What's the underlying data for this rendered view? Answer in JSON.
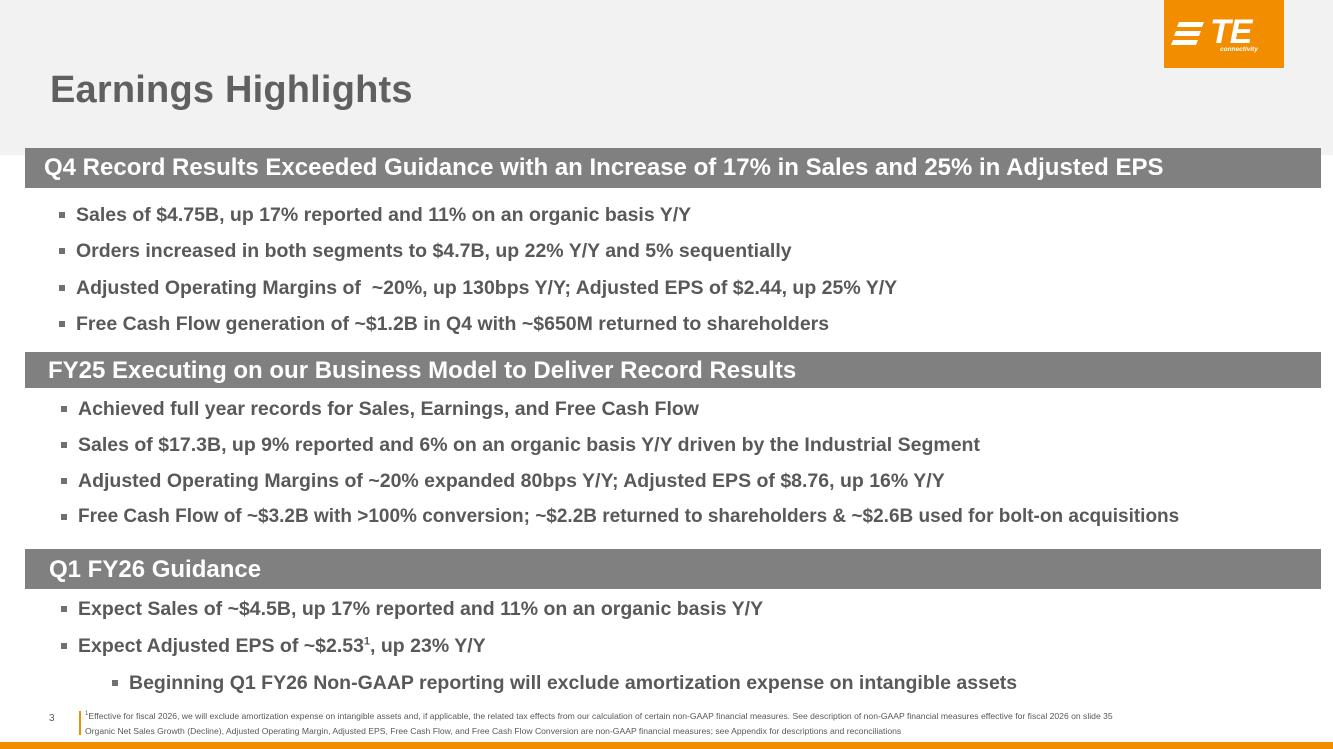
{
  "title": "Earnings Highlights",
  "logo": {
    "brand": "TE",
    "sub": "connectivity"
  },
  "sections": [
    {
      "heading": "Q4 Record Results Exceeded Guidance with an Increase of 17% in Sales and 25% in Adjusted EPS",
      "bullets": [
        "Sales of $4.75B, up 17% reported and 11% on an organic basis Y/Y",
        "Orders increased in both segments to $4.7B, up 22% Y/Y and 5% sequentially",
        "Adjusted Operating Margins of  ~20%, up 130bps Y/Y; Adjusted EPS of $2.44, up 25% Y/Y",
        "Free Cash Flow generation of ~$1.2B in Q4 with ~$650M returned to shareholders"
      ]
    },
    {
      "heading": "FY25 Executing on our Business Model to Deliver Record Results",
      "bullets": [
        "Achieved full year records for Sales, Earnings, and Free Cash Flow",
        "Sales of $17.3B, up 9% reported and 6% on an organic basis Y/Y driven by the Industrial Segment",
        "Adjusted Operating Margins of ~20% expanded 80bps Y/Y; Adjusted EPS of $8.76, up 16% Y/Y",
        "Free Cash Flow of ~$3.2B with >100% conversion; ~$2.2B returned to shareholders & ~$2.6B used for bolt-on acquisitions"
      ]
    },
    {
      "heading": "Q1 FY26 Guidance",
      "bullets": [
        "Expect Sales of ~$4.5B, up 17% reported and 11% on an organic basis Y/Y"
      ],
      "eps_bullet": {
        "text": "Expect Adjusted EPS of ~$2.53",
        "sup": "1",
        "after": ", up 23% Y/Y"
      },
      "sub_bullet": "Beginning Q1 FY26 Non-GAAP reporting will exclude amortization expense on intangible assets"
    }
  ],
  "footer": {
    "slide_number": "3",
    "note_sup": "1",
    "note1": "Effective for fiscal 2026, we will exclude amortization expense on intangible assets and, if applicable, the related tax effects from our calculation of certain non-GAAP financial measures. See description of non-GAAP financial measures effective for fiscal 2026 on slide 35",
    "note2": "Organic Net Sales Growth (Decline), Adjusted Operating Margin, Adjusted EPS, Free Cash Flow, and Free Cash Flow Conversion are non-GAAP financial measures; see Appendix for descriptions and reconciliations"
  },
  "colors": {
    "accent": "#f28d00",
    "bar": "#808080",
    "text": "#595959",
    "header_band": "#f2f2f2"
  }
}
